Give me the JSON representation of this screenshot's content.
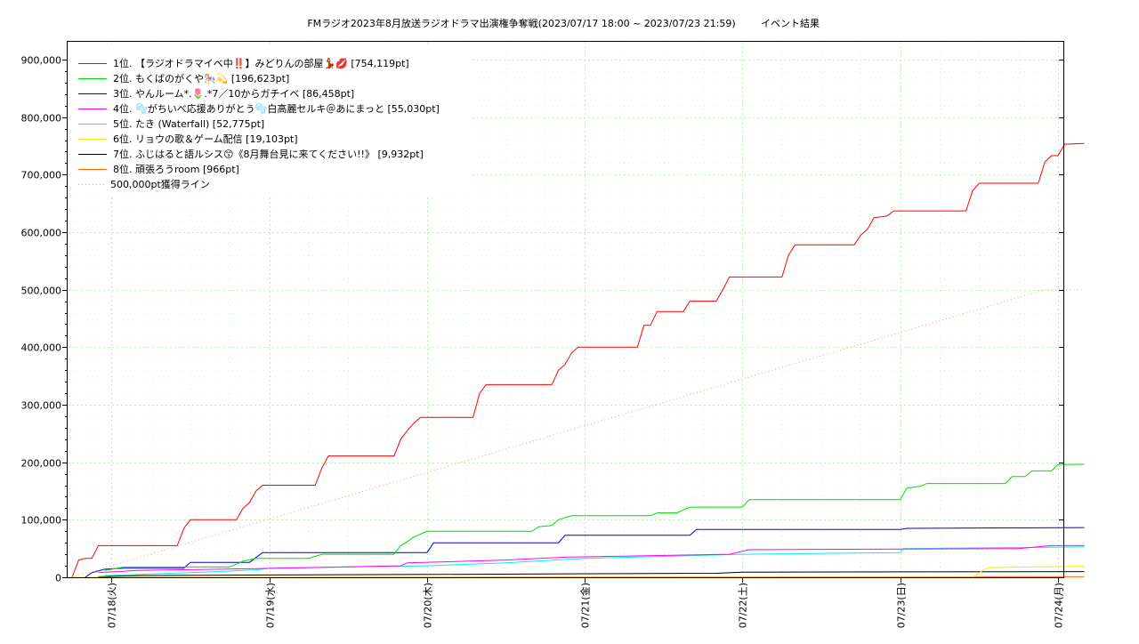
{
  "chart_data": {
    "type": "line",
    "title": "FMラジオ2023年8月放送ラジオドラマ出演権争奪戦(2023/07/17 18:00 ~ 2023/07/23 21:59)",
    "subtitle": "イベント結果",
    "xlabel": "",
    "ylabel": "",
    "ylim": [
      0,
      900000
    ],
    "xlim": [
      "2023-07-17 18:00",
      "2023-07-24 00:00"
    ],
    "y_ticks": [
      "0",
      "100,000",
      "200,000",
      "300,000",
      "400,000",
      "500,000",
      "600,000",
      "700,000",
      "800,000",
      "900,000"
    ],
    "x_ticks": [
      "07/18(火)",
      "07/19(水)",
      "07/20(木)",
      "07/21(金)",
      "07/22(土)",
      "07/23(日)",
      "07/24(月)"
    ],
    "grid": true,
    "legend_position": "top-left",
    "series": [
      {
        "name": "1位. 【ラジオドラマイベ中‼️】みどりんの部屋💃💋 [754,119pt]",
        "color": "#ff0000",
        "points": [
          [
            "2023-07-17 18:00",
            0
          ],
          [
            "2023-07-17 19:00",
            30000
          ],
          [
            "2023-07-17 20:00",
            33000
          ],
          [
            "2023-07-17 21:00",
            33000
          ],
          [
            "2023-07-17 22:00",
            55000
          ],
          [
            "2023-07-18 10:00",
            55000
          ],
          [
            "2023-07-18 11:00",
            85000
          ],
          [
            "2023-07-18 12:00",
            100000
          ],
          [
            "2023-07-18 19:00",
            100000
          ],
          [
            "2023-07-18 20:00",
            120000
          ],
          [
            "2023-07-18 21:00",
            130000
          ],
          [
            "2023-07-18 22:00",
            150000
          ],
          [
            "2023-07-18 23:00",
            160000
          ],
          [
            "2023-07-19 07:00",
            160000
          ],
          [
            "2023-07-19 08:00",
            190000
          ],
          [
            "2023-07-19 09:00",
            211000
          ],
          [
            "2023-07-19 19:00",
            211000
          ],
          [
            "2023-07-19 20:00",
            240000
          ],
          [
            "2023-07-19 21:00",
            255000
          ],
          [
            "2023-07-19 22:00",
            268000
          ],
          [
            "2023-07-19 23:00",
            278000
          ],
          [
            "2023-07-20 07:00",
            278000
          ],
          [
            "2023-07-20 08:00",
            320000
          ],
          [
            "2023-07-20 09:00",
            335000
          ],
          [
            "2023-07-20 19:00",
            335000
          ],
          [
            "2023-07-20 20:00",
            360000
          ],
          [
            "2023-07-20 21:00",
            370000
          ],
          [
            "2023-07-20 22:00",
            390000
          ],
          [
            "2023-07-20 23:00",
            400000
          ],
          [
            "2023-07-21 08:00",
            400000
          ],
          [
            "2023-07-21 09:00",
            438000
          ],
          [
            "2023-07-21 10:00",
            438000
          ],
          [
            "2023-07-21 11:00",
            462000
          ],
          [
            "2023-07-21 15:00",
            462000
          ],
          [
            "2023-07-21 16:00",
            480000
          ],
          [
            "2023-07-21 20:00",
            480000
          ],
          [
            "2023-07-21 21:00",
            500000
          ],
          [
            "2023-07-21 22:00",
            522000
          ],
          [
            "2023-07-22 06:00",
            522000
          ],
          [
            "2023-07-22 07:00",
            560000
          ],
          [
            "2023-07-22 08:00",
            578000
          ],
          [
            "2023-07-22 17:00",
            578000
          ],
          [
            "2023-07-22 18:00",
            595000
          ],
          [
            "2023-07-22 19:00",
            605000
          ],
          [
            "2023-07-22 20:00",
            625000
          ],
          [
            "2023-07-22 22:00",
            628000
          ],
          [
            "2023-07-22 23:00",
            637000
          ],
          [
            "2023-07-23 10:00",
            637000
          ],
          [
            "2023-07-23 11:00",
            672000
          ],
          [
            "2023-07-23 12:00",
            685000
          ],
          [
            "2023-07-23 21:00",
            685000
          ],
          [
            "2023-07-23 22:00",
            722000
          ],
          [
            "2023-07-23 23:00",
            733000
          ],
          [
            "2023-07-24 00:00",
            733000
          ],
          [
            "2023-07-24 01:00",
            753000
          ],
          [
            "2023-07-24 04:00",
            754119
          ]
        ]
      },
      {
        "name": "2位. もくばのがくや🎠💫 [196,623pt]",
        "color": "#00dd00",
        "points": [
          [
            "2023-07-17 23:00",
            12000
          ],
          [
            "2023-07-18 02:00",
            18000
          ],
          [
            "2023-07-18 18:00",
            18000
          ],
          [
            "2023-07-18 20:00",
            28000
          ],
          [
            "2023-07-18 22:00",
            33000
          ],
          [
            "2023-07-19 06:00",
            33000
          ],
          [
            "2023-07-19 08:00",
            40000
          ],
          [
            "2023-07-19 19:00",
            40000
          ],
          [
            "2023-07-19 20:00",
            55000
          ],
          [
            "2023-07-19 21:00",
            62000
          ],
          [
            "2023-07-19 22:00",
            70000
          ],
          [
            "2023-07-20 00:00",
            80000
          ],
          [
            "2023-07-20 16:00",
            80000
          ],
          [
            "2023-07-20 17:00",
            88000
          ],
          [
            "2023-07-20 19:00",
            90000
          ],
          [
            "2023-07-20 20:00",
            100000
          ],
          [
            "2023-07-20 22:00",
            107000
          ],
          [
            "2023-07-21 10:00",
            107000
          ],
          [
            "2023-07-21 11:00",
            112000
          ],
          [
            "2023-07-21 14:00",
            112000
          ],
          [
            "2023-07-21 16:00",
            122000
          ],
          [
            "2023-07-22 00:00",
            122000
          ],
          [
            "2023-07-22 01:00",
            135000
          ],
          [
            "2023-07-23 00:00",
            135000
          ],
          [
            "2023-07-23 01:00",
            155000
          ],
          [
            "2023-07-23 03:00",
            158000
          ],
          [
            "2023-07-23 04:00",
            163000
          ],
          [
            "2023-07-23 16:00",
            163000
          ],
          [
            "2023-07-23 17:00",
            175000
          ],
          [
            "2023-07-23 19:00",
            175000
          ],
          [
            "2023-07-23 20:00",
            185000
          ],
          [
            "2023-07-23 23:00",
            185000
          ],
          [
            "2023-07-24 00:00",
            196000
          ],
          [
            "2023-07-24 04:00",
            196623
          ]
        ]
      },
      {
        "name": "3位. やんルーム*.🌷.*7／10からガチイベ [86,458pt]",
        "color": "#0000dd",
        "points": [
          [
            "2023-07-17 20:00",
            0
          ],
          [
            "2023-07-17 21:00",
            8000
          ],
          [
            "2023-07-17 23:00",
            14000
          ],
          [
            "2023-07-18 02:00",
            16000
          ],
          [
            "2023-07-18 11:00",
            16000
          ],
          [
            "2023-07-18 12:00",
            26000
          ],
          [
            "2023-07-18 21:00",
            26000
          ],
          [
            "2023-07-18 23:00",
            43000
          ],
          [
            "2023-07-20 00:00",
            43000
          ],
          [
            "2023-07-20 01:00",
            60000
          ],
          [
            "2023-07-20 20:00",
            60000
          ],
          [
            "2023-07-20 21:00",
            73000
          ],
          [
            "2023-07-21 16:00",
            73000
          ],
          [
            "2023-07-21 17:00",
            83000
          ],
          [
            "2023-07-23 00:00",
            83000
          ],
          [
            "2023-07-23 01:00",
            85000
          ],
          [
            "2023-07-24 04:00",
            86458
          ]
        ]
      },
      {
        "name": "4位. 🫧がちいべ応援ありがとう🫧白高麗セルキ＠あにまっと [55,030pt]",
        "color": "#ff00ff",
        "points": [
          [
            "2023-07-17 22:00",
            8000
          ],
          [
            "2023-07-18 04:00",
            12000
          ],
          [
            "2023-07-18 22:00",
            15000
          ],
          [
            "2023-07-19 20:00",
            20000
          ],
          [
            "2023-07-19 21:00",
            25000
          ],
          [
            "2023-07-20 12:00",
            30000
          ],
          [
            "2023-07-20 21:00",
            35000
          ],
          [
            "2023-07-21 22:00",
            40000
          ],
          [
            "2023-07-22 01:00",
            48000
          ],
          [
            "2023-07-23 18:00",
            50000
          ],
          [
            "2023-07-23 23:00",
            55000
          ],
          [
            "2023-07-24 04:00",
            55030
          ]
        ]
      },
      {
        "name": "5位. たき (Waterfall) [52,775pt]",
        "color": "#00eeee",
        "points": [
          [
            "2023-07-17 23:00",
            3000
          ],
          [
            "2023-07-18 12:00",
            8000
          ],
          [
            "2023-07-18 22:00",
            13000
          ],
          [
            "2023-07-19 00:00",
            16000
          ],
          [
            "2023-07-20 00:00",
            20000
          ],
          [
            "2023-07-20 12:00",
            25000
          ],
          [
            "2023-07-21 00:00",
            33000
          ],
          [
            "2023-07-22 00:00",
            40000
          ],
          [
            "2023-07-23 00:00",
            43000
          ],
          [
            "2023-07-23 00:30",
            50000
          ],
          [
            "2023-07-24 04:00",
            52775
          ]
        ]
      },
      {
        "name": "6位. リョウの歌＆ゲーム配信 [19,103pt]",
        "color": "#eeee00",
        "points": [
          [
            "2023-07-17 18:00",
            0
          ],
          [
            "2023-07-23 11:00",
            0
          ],
          [
            "2023-07-23 13:00",
            15000
          ],
          [
            "2023-07-23 14:00",
            17000
          ],
          [
            "2023-07-24 04:00",
            19103
          ]
        ]
      },
      {
        "name": "7位. ふじはると語ルシス😙《8月舞台見に来てください!!》 [9,932pt]",
        "color": "#000000",
        "points": [
          [
            "2023-07-17 22:00",
            1000
          ],
          [
            "2023-07-18 04:00",
            3000
          ],
          [
            "2023-07-19 00:00",
            4000
          ],
          [
            "2023-07-20 00:00",
            5000
          ],
          [
            "2023-07-21 20:00",
            7000
          ],
          [
            "2023-07-22 00:00",
            9000
          ],
          [
            "2023-07-24 04:00",
            9932
          ]
        ]
      },
      {
        "name": "8位. 頑張ろうroom [966pt]",
        "color": "#ff6600",
        "points": [
          [
            "2023-07-17 18:00",
            0
          ],
          [
            "2023-07-20 00:00",
            500
          ],
          [
            "2023-07-24 04:00",
            966
          ]
        ]
      },
      {
        "name": "500,000pt獲得ライン",
        "color": "#ff9999",
        "dotted": true,
        "points": [
          [
            "2023-07-17 18:00",
            0
          ],
          [
            "2023-07-23 22:00",
            500000
          ],
          [
            "2023-07-24 04:00",
            500000
          ]
        ]
      }
    ]
  }
}
